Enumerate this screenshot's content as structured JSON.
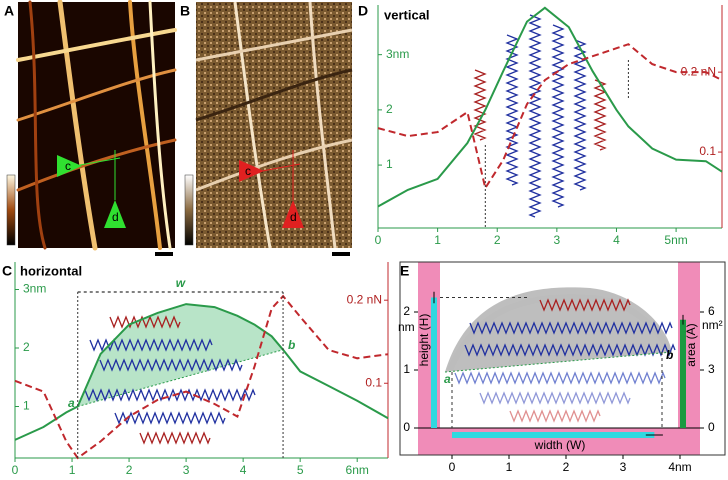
{
  "panels": {
    "A": {
      "label": "A",
      "arrow_labels": [
        "c",
        "d"
      ]
    },
    "B": {
      "label": "B",
      "arrow_labels": [
        "c",
        "d"
      ]
    },
    "D": {
      "label": "D",
      "title": "vertical",
      "xlim": [
        0,
        5.77
      ],
      "xticks": [
        0,
        1,
        2,
        3,
        4,
        {
          "value": 5,
          "label": "5nm"
        }
      ],
      "ylim": [
        -0.14,
        3.9
      ],
      "yticks": [
        1,
        2,
        {
          "value": 3,
          "label": "3nm"
        }
      ],
      "y2lim": [
        0.005,
        0.284
      ],
      "y2ticks": [
        0.1,
        {
          "value": 0.2,
          "label": "0.2 nN"
        }
      ],
      "x": [
        0,
        0.5,
        1,
        1.5,
        1.8,
        2.1,
        2.5,
        2.8,
        3.2,
        3.6,
        4,
        4.2,
        4.6,
        5,
        5.5,
        5.77
      ],
      "series": [
        {
          "color": "#2a9a4a",
          "values": [
            0.25,
            0.55,
            0.75,
            1.4,
            2.0,
            2.7,
            3.6,
            3.85,
            3.5,
            2.7,
            2.0,
            1.7,
            1.3,
            1.1,
            1.07,
            0.88
          ]
        },
        {
          "color": "#c0282d",
          "axis": "y2",
          "dashed": true,
          "values": [
            0.13,
            0.12,
            0.125,
            0.15,
            0.055,
            0.09,
            0.16,
            0.19,
            0.21,
            0.22,
            0.23,
            0.235,
            0.21,
            0.2,
            0.2,
            0.19
          ]
        }
      ]
    },
    "C": {
      "label": "C",
      "title": "horizontal",
      "width_label": "w",
      "point_labels": [
        "a",
        "b"
      ],
      "width_range": [
        1.1,
        4.7
      ],
      "xlim": [
        0,
        6.54
      ],
      "xticks": [
        0,
        1,
        2,
        3,
        4,
        5,
        {
          "value": 6,
          "label": "6nm"
        }
      ],
      "ylim": [
        0.12,
        3.47
      ],
      "yticks": [
        1,
        2,
        {
          "value": 3,
          "label": "3nm"
        }
      ],
      "y2lim": [
        0.01,
        0.246
      ],
      "y2ticks": [
        0.1,
        {
          "value": 0.2,
          "label": "0.2 nN"
        }
      ],
      "x": [
        0,
        0.5,
        0.9,
        1.1,
        1.5,
        2,
        2.5,
        3,
        3.5,
        3.9,
        4.2,
        4.5,
        4.7,
        5,
        5.5,
        6,
        6.54
      ],
      "series": [
        {
          "color": "#2a9a4a",
          "values": [
            0.43,
            0.65,
            0.9,
            1.0,
            1.9,
            2.4,
            2.6,
            2.75,
            2.7,
            2.55,
            2.4,
            2.2,
            1.97,
            1.6,
            1.35,
            1.1,
            0.8
          ]
        },
        {
          "color": "#c0282d",
          "axis": "y2",
          "dashed": true,
          "values": [
            0.103,
            0.09,
            0.03,
            0.01,
            0.03,
            0.06,
            0.08,
            0.09,
            0.075,
            0.06,
            0.12,
            0.19,
            0.205,
            0.18,
            0.14,
            0.13,
            0.135
          ]
        }
      ]
    },
    "E": {
      "label": "E",
      "point_labels": [
        "a",
        "b"
      ],
      "height_label": "height (H)",
      "area_label": "area (A)",
      "width_label": "width (W)",
      "y_unit": "nm",
      "y2_unit": "nm²",
      "xticks": [
        0,
        1,
        2,
        3,
        {
          "value": 4,
          "label": "4nm"
        }
      ],
      "yticks": [
        0,
        1,
        2
      ],
      "y2ticks": [
        0,
        3,
        6
      ],
      "height": {
        "value": 2.25,
        "error": 0.1
      },
      "area": {
        "value": 5.6,
        "error": 0.25
      },
      "width": {
        "value": 3.55,
        "error": 0.15
      }
    }
  }
}
